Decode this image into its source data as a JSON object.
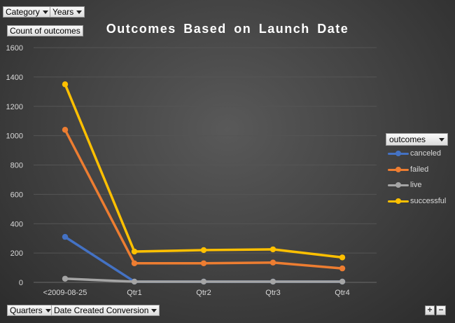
{
  "filters": {
    "category_label": "Category",
    "years_label": "Years"
  },
  "value_field_label": "Count of outcomes",
  "axis_fields": {
    "quarters_label": "Quarters",
    "date_created_label": "Date Created Conversion"
  },
  "legend_field_label": "outcomes",
  "zoom": {
    "expand_label": "+",
    "collapse_label": "−"
  },
  "chart_data": {
    "type": "line",
    "title": "Outcomes Based on Launch Date",
    "xlabel": "",
    "ylabel": "",
    "categories": [
      "<2009-08-25",
      "Qtr1",
      "Qtr2",
      "Qtr3",
      "Qtr4"
    ],
    "ylim": [
      0,
      1600
    ],
    "yticks": [
      0,
      200,
      400,
      600,
      800,
      1000,
      1200,
      1400,
      1600
    ],
    "grid": true,
    "legend_position": "right",
    "series": [
      {
        "name": "canceled",
        "color": "#4472c4",
        "values": [
          310,
          5,
          5,
          5,
          5
        ]
      },
      {
        "name": "failed",
        "color": "#ed7d31",
        "values": [
          1040,
          130,
          130,
          135,
          95
        ]
      },
      {
        "name": "live",
        "color": "#a5a5a5",
        "values": [
          25,
          5,
          5,
          5,
          5
        ]
      },
      {
        "name": "successful",
        "color": "#ffc000",
        "values": [
          1350,
          210,
          220,
          225,
          170
        ]
      }
    ]
  }
}
